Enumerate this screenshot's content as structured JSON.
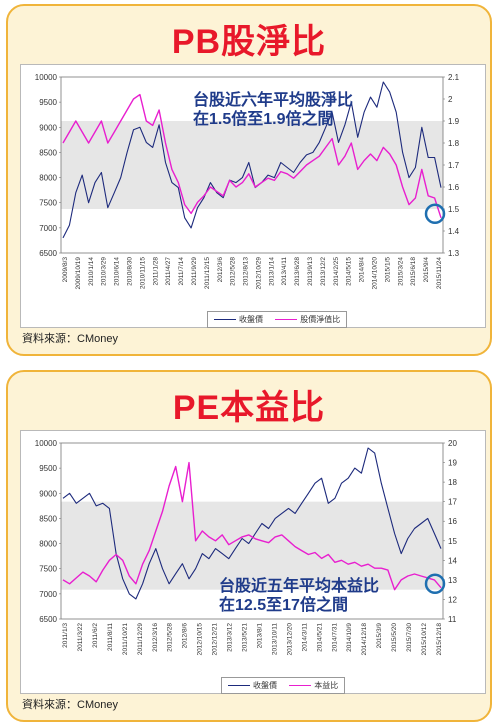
{
  "colors": {
    "index_series": "#1d2a7c",
    "ratio_series": "#e81fcf",
    "band": "#e6e6e6",
    "circle": "#1f6fb0"
  },
  "source_label": "資料來源：CMoney",
  "chart_data": [
    {
      "id": "pb",
      "type": "line",
      "title": "PB股淨比",
      "annotation": [
        "台股近六年平均股淨比",
        "在1.5倍至1.9倍之間"
      ],
      "legend": [
        "收盤價",
        "股價淨值比"
      ],
      "band_right": [
        1.5,
        1.9
      ],
      "ylim_left": [
        6500,
        10000
      ],
      "ylim_right": [
        1.3,
        2.1
      ],
      "yticks_left": [
        "6500",
        "7000",
        "7500",
        "8000",
        "8500",
        "9000",
        "9500",
        "10000"
      ],
      "yticks_right": [
        "1.3",
        "1.4",
        "1.5",
        "1.6",
        "1.7",
        "1.8",
        "1.9",
        "2",
        "2.1"
      ],
      "x_ticks": [
        "2009/8/3",
        "2009/10/19",
        "2010/1/14",
        "2010/3/29",
        "2010/6/14",
        "2010/8/30",
        "2010/11/15",
        "2011/1/28",
        "2011/4/27",
        "2011/7/14",
        "2011/9/29",
        "2011/12/15",
        "2012/3/6",
        "2012/5/28",
        "2012/8/13",
        "2012/10/29",
        "2013/1/14",
        "2013/4/11",
        "2013/6/28",
        "2013/9/13",
        "2013/12/2",
        "2014/2/25",
        "2014/5/15",
        "2014/8/4",
        "2014/10/20",
        "2015/1/5",
        "2015/3/24",
        "2015/6/18",
        "2015/9/4",
        "2015/11/24"
      ],
      "series": [
        {
          "name": "收盤價",
          "axis": "left",
          "values": [
            6800,
            7050,
            7700,
            8050,
            7500,
            7900,
            8100,
            7400,
            7700,
            8000,
            8500,
            8950,
            9000,
            8700,
            8600,
            9050,
            8300,
            7900,
            7800,
            7200,
            7000,
            7400,
            7600,
            7900,
            7700,
            7600,
            7950,
            7900,
            8000,
            8300,
            7800,
            7900,
            8050,
            8000,
            8300,
            8200,
            8100,
            8300,
            8450,
            8500,
            8700,
            9000,
            9300,
            8700,
            9050,
            9500,
            8800,
            9300,
            9600,
            9400,
            9900,
            9700,
            9300,
            8500,
            8000,
            8200,
            9000,
            8400,
            8400,
            7800
          ]
        },
        {
          "name": "股價淨值比",
          "axis": "right",
          "values": [
            1.8,
            1.85,
            1.9,
            1.85,
            1.8,
            1.85,
            1.9,
            1.8,
            1.85,
            1.9,
            1.95,
            2.0,
            2.02,
            1.9,
            1.88,
            1.95,
            1.8,
            1.68,
            1.62,
            1.52,
            1.48,
            1.53,
            1.56,
            1.6,
            1.58,
            1.56,
            1.63,
            1.6,
            1.62,
            1.66,
            1.6,
            1.62,
            1.64,
            1.63,
            1.67,
            1.66,
            1.64,
            1.67,
            1.7,
            1.72,
            1.74,
            1.78,
            1.82,
            1.7,
            1.74,
            1.8,
            1.68,
            1.72,
            1.75,
            1.72,
            1.78,
            1.75,
            1.7,
            1.6,
            1.52,
            1.55,
            1.68,
            1.56,
            1.55,
            1.46
          ]
        }
      ]
    },
    {
      "id": "pe",
      "type": "line",
      "title": "PE本益比",
      "annotation": [
        "台股近五年平均本益比",
        "在12.5至17倍之間"
      ],
      "legend": [
        "收盤價",
        "本益比"
      ],
      "band_right": [
        12.5,
        17
      ],
      "ylim_left": [
        6500,
        10000
      ],
      "ylim_right": [
        11,
        20
      ],
      "yticks_left": [
        "6500",
        "7000",
        "7500",
        "8000",
        "8500",
        "9000",
        "9500",
        "10000"
      ],
      "yticks_right": [
        "11",
        "12",
        "13",
        "14",
        "15",
        "16",
        "17",
        "18",
        "19",
        "20"
      ],
      "x_ticks": [
        "2011/1/3",
        "2011/3/22",
        "2011/6/2",
        "2011/8/11",
        "2011/10/21",
        "2011/12/29",
        "2012/3/16",
        "2012/5/28",
        "2012/8/6",
        "2012/10/15",
        "2012/12/21",
        "2013/3/12",
        "2013/5/21",
        "2013/8/1",
        "2013/10/11",
        "2013/12/20",
        "2014/3/11",
        "2014/5/21",
        "2014/7/31",
        "2014/10/9",
        "2014/12/18",
        "2015/3/9",
        "2015/5/20",
        "2015/7/30",
        "2015/10/12",
        "2015/12/18"
      ],
      "series": [
        {
          "name": "收盤價",
          "axis": "left",
          "values": [
            8900,
            9000,
            8800,
            8900,
            9000,
            8750,
            8800,
            8700,
            7800,
            7300,
            7000,
            6900,
            7200,
            7600,
            7900,
            7500,
            7200,
            7400,
            7600,
            7300,
            7500,
            7800,
            7700,
            7900,
            7800,
            7700,
            7900,
            8100,
            8000,
            8200,
            8400,
            8300,
            8500,
            8600,
            8700,
            8600,
            8800,
            9000,
            9200,
            9300,
            8800,
            8900,
            9200,
            9300,
            9500,
            9400,
            9900,
            9800,
            9200,
            8700,
            8200,
            7800,
            8100,
            8300,
            8400,
            8500,
            8200,
            7900
          ]
        },
        {
          "name": "本益比",
          "axis": "right",
          "values": [
            13.0,
            12.8,
            13.1,
            13.4,
            13.2,
            12.9,
            13.5,
            14.0,
            14.3,
            14.0,
            13.2,
            12.8,
            13.8,
            14.5,
            15.5,
            16.5,
            17.8,
            18.8,
            17.0,
            19.0,
            15.0,
            15.5,
            15.2,
            15.0,
            15.3,
            14.8,
            15.0,
            15.2,
            15.3,
            15.1,
            15.0,
            14.9,
            15.2,
            15.3,
            15.0,
            14.7,
            14.5,
            14.3,
            14.4,
            14.1,
            14.3,
            13.9,
            14.0,
            13.8,
            13.9,
            13.7,
            13.8,
            13.6,
            13.6,
            13.5,
            12.5,
            13.0,
            13.2,
            13.3,
            13.2,
            13.1,
            13.0,
            12.6
          ]
        }
      ]
    }
  ]
}
